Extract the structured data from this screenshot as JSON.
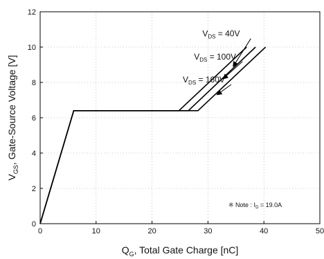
{
  "chart_data": {
    "type": "line",
    "xlabel": {
      "main": "Q",
      "sub": "G",
      "rest": ", Total Gate Charge [nC]"
    },
    "ylabel": {
      "main": "V",
      "sub": "GS",
      "rest": ", Gate-Source Voltage [V]"
    },
    "xlim": [
      0,
      50
    ],
    "ylim": [
      0,
      12
    ],
    "x_ticks": [
      0,
      10,
      20,
      30,
      40,
      50
    ],
    "y_ticks": [
      0,
      2,
      4,
      6,
      8,
      10,
      12
    ],
    "grid": true,
    "series": [
      {
        "name": "VDS = 40V",
        "x": [
          0,
          6,
          24.8,
          36.9
        ],
        "y": [
          0,
          6.4,
          6.4,
          10
        ]
      },
      {
        "name": "VDS = 100V",
        "x": [
          0,
          6,
          26.5,
          38.5
        ],
        "y": [
          0,
          6.4,
          6.4,
          10
        ]
      },
      {
        "name": "VDS = 160V",
        "x": [
          0,
          6,
          28.2,
          40.3
        ],
        "y": [
          0,
          6.4,
          6.4,
          10
        ]
      }
    ],
    "annotations": [
      {
        "label_main": "V",
        "label_sub": "DS",
        "label_rest": " = 40V",
        "text_at": [
          29,
          10.6
        ],
        "arrow_to": [
          34.5,
          8.9
        ]
      },
      {
        "label_main": "V",
        "label_sub": "DS",
        "label_rest": " = 100V",
        "text_at": [
          27.5,
          9.3
        ],
        "arrow_to": [
          32.7,
          8.2
        ]
      },
      {
        "label_main": "V",
        "label_sub": "DS",
        "label_rest": " = 160V",
        "text_at": [
          25.5,
          8.0
        ],
        "arrow_to": [
          31.6,
          7.3
        ]
      }
    ],
    "note": {
      "prefix": "※ Note : I",
      "sub": "D",
      "rest": " = 19.0A"
    }
  }
}
